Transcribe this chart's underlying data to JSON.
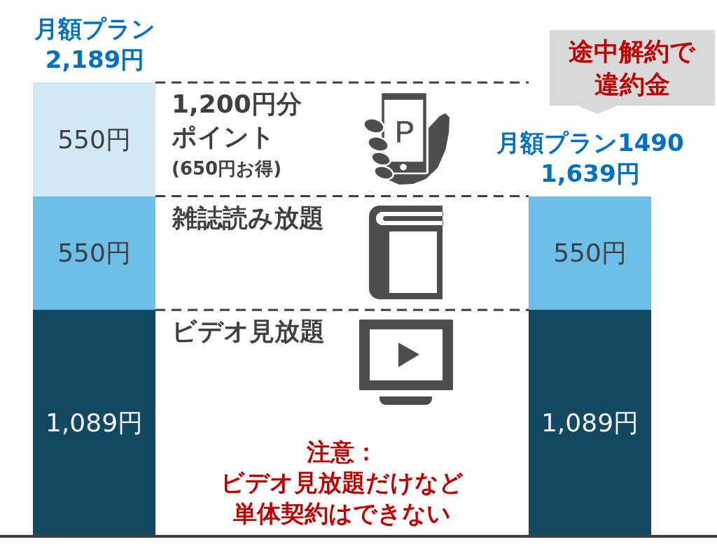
{
  "chart_data": {
    "type": "bar",
    "stacked": true,
    "categories": [
      "月額プラン",
      "月額プラン1490"
    ],
    "series": [
      {
        "name": "ビデオ見放題",
        "color": "#134862",
        "values": [
          1089,
          1089
        ],
        "value_labels": [
          "1,089円",
          "1,089円"
        ]
      },
      {
        "name": "雑誌読み放題",
        "color": "#6dbee8",
        "values": [
          550,
          550
        ],
        "value_labels": [
          "550円",
          "550円"
        ]
      },
      {
        "name": "1,200円分ポイント",
        "color": "#d0e9f5",
        "values": [
          550,
          null
        ],
        "value_labels": [
          "550円",
          null
        ]
      }
    ],
    "totals": [
      "2,189円",
      "1,639円"
    ],
    "ref_lines": [
      {
        "axis": "y",
        "value": 2189,
        "color": "#404040",
        "line_style": "dashed"
      },
      {
        "axis": "y",
        "value": 1639,
        "color": "#404040",
        "line_style": "dashed"
      },
      {
        "axis": "y",
        "value": 1089,
        "color": "#404040",
        "line_style": "dashed"
      }
    ],
    "annotations": [
      "(650円お得)",
      "途中解約で違約金",
      "注意：ビデオ見放題だけなど単体契約はできない"
    ],
    "legend": false,
    "tick_labels": false
  }
}
